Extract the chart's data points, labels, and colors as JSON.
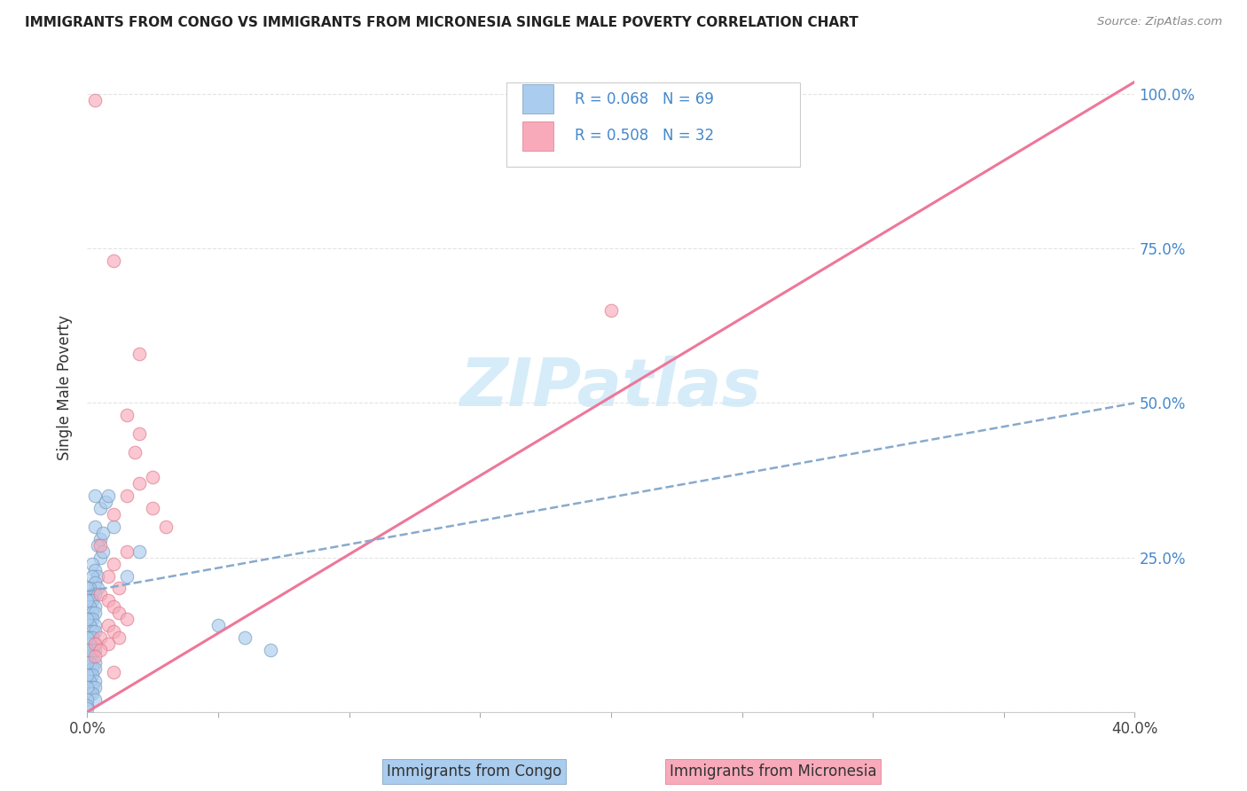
{
  "title": "IMMIGRANTS FROM CONGO VS IMMIGRANTS FROM MICRONESIA SINGLE MALE POVERTY CORRELATION CHART",
  "source": "Source: ZipAtlas.com",
  "xlabel_congo": "Immigrants from Congo",
  "xlabel_micronesia": "Immigrants from Micronesia",
  "ylabel": "Single Male Poverty",
  "xlim": [
    0.0,
    0.4
  ],
  "ylim": [
    0.0,
    1.05
  ],
  "yticks": [
    0.0,
    0.25,
    0.5,
    0.75,
    1.0
  ],
  "yticklabels_right": [
    "",
    "25.0%",
    "50.0%",
    "75.0%",
    "100.0%"
  ],
  "xtick_labels": [
    "0.0%",
    "",
    "",
    "",
    "",
    "",
    "",
    "",
    "40.0%"
  ],
  "legend_text1": "R = 0.068   N = 69",
  "legend_text2": "R = 0.508   N = 32",
  "congo_fill": "#aaccee",
  "congo_edge": "#7799bb",
  "micronesia_fill": "#f8aabb",
  "micronesia_edge": "#dd7788",
  "trendline_congo_color": "#88aacc",
  "trendline_micronesia_color": "#ee7799",
  "watermark": "ZIPatlas",
  "watermark_color": "#cce8f8",
  "congo_points": [
    [
      0.003,
      0.35
    ],
    [
      0.005,
      0.33
    ],
    [
      0.007,
      0.34
    ],
    [
      0.003,
      0.3
    ],
    [
      0.005,
      0.28
    ],
    [
      0.006,
      0.29
    ],
    [
      0.004,
      0.27
    ],
    [
      0.005,
      0.25
    ],
    [
      0.006,
      0.26
    ],
    [
      0.002,
      0.24
    ],
    [
      0.003,
      0.23
    ],
    [
      0.004,
      0.22
    ],
    [
      0.002,
      0.22
    ],
    [
      0.003,
      0.21
    ],
    [
      0.004,
      0.2
    ],
    [
      0.001,
      0.2
    ],
    [
      0.002,
      0.19
    ],
    [
      0.003,
      0.19
    ],
    [
      0.001,
      0.18
    ],
    [
      0.002,
      0.18
    ],
    [
      0.003,
      0.17
    ],
    [
      0.001,
      0.17
    ],
    [
      0.002,
      0.16
    ],
    [
      0.003,
      0.16
    ],
    [
      0.001,
      0.15
    ],
    [
      0.002,
      0.15
    ],
    [
      0.003,
      0.14
    ],
    [
      0.001,
      0.14
    ],
    [
      0.002,
      0.13
    ],
    [
      0.003,
      0.13
    ],
    [
      0.001,
      0.12
    ],
    [
      0.002,
      0.12
    ],
    [
      0.003,
      0.11
    ],
    [
      0.001,
      0.11
    ],
    [
      0.002,
      0.1
    ],
    [
      0.003,
      0.1
    ],
    [
      0.001,
      0.09
    ],
    [
      0.002,
      0.09
    ],
    [
      0.003,
      0.08
    ],
    [
      0.001,
      0.08
    ],
    [
      0.002,
      0.07
    ],
    [
      0.003,
      0.07
    ],
    [
      0.001,
      0.06
    ],
    [
      0.002,
      0.06
    ],
    [
      0.003,
      0.05
    ],
    [
      0.001,
      0.05
    ],
    [
      0.002,
      0.04
    ],
    [
      0.003,
      0.04
    ],
    [
      0.001,
      0.03
    ],
    [
      0.002,
      0.03
    ],
    [
      0.003,
      0.02
    ],
    [
      0.0,
      0.2
    ],
    [
      0.0,
      0.18
    ],
    [
      0.0,
      0.15
    ],
    [
      0.0,
      0.12
    ],
    [
      0.0,
      0.1
    ],
    [
      0.0,
      0.08
    ],
    [
      0.0,
      0.06
    ],
    [
      0.0,
      0.04
    ],
    [
      0.0,
      0.02
    ],
    [
      0.0,
      0.01
    ],
    [
      0.0,
      0.005
    ],
    [
      0.008,
      0.35
    ],
    [
      0.01,
      0.3
    ],
    [
      0.015,
      0.22
    ],
    [
      0.02,
      0.26
    ],
    [
      0.05,
      0.14
    ],
    [
      0.06,
      0.12
    ],
    [
      0.07,
      0.1
    ]
  ],
  "micronesia_points": [
    [
      0.003,
      0.99
    ],
    [
      0.01,
      0.73
    ],
    [
      0.02,
      0.58
    ],
    [
      0.015,
      0.48
    ],
    [
      0.02,
      0.45
    ],
    [
      0.018,
      0.42
    ],
    [
      0.025,
      0.38
    ],
    [
      0.02,
      0.37
    ],
    [
      0.015,
      0.35
    ],
    [
      0.025,
      0.33
    ],
    [
      0.01,
      0.32
    ],
    [
      0.03,
      0.3
    ],
    [
      0.005,
      0.27
    ],
    [
      0.015,
      0.26
    ],
    [
      0.01,
      0.24
    ],
    [
      0.008,
      0.22
    ],
    [
      0.012,
      0.2
    ],
    [
      0.005,
      0.19
    ],
    [
      0.008,
      0.18
    ],
    [
      0.01,
      0.17
    ],
    [
      0.012,
      0.16
    ],
    [
      0.015,
      0.15
    ],
    [
      0.008,
      0.14
    ],
    [
      0.01,
      0.13
    ],
    [
      0.012,
      0.12
    ],
    [
      0.005,
      0.12
    ],
    [
      0.008,
      0.11
    ],
    [
      0.003,
      0.11
    ],
    [
      0.005,
      0.1
    ],
    [
      0.003,
      0.09
    ],
    [
      0.01,
      0.065
    ],
    [
      0.2,
      0.65
    ]
  ],
  "trendline_micronesia": [
    [
      0.0,
      0.0
    ],
    [
      0.4,
      1.02
    ]
  ],
  "trendline_congo": [
    [
      0.0,
      0.195
    ],
    [
      0.4,
      0.5
    ]
  ]
}
